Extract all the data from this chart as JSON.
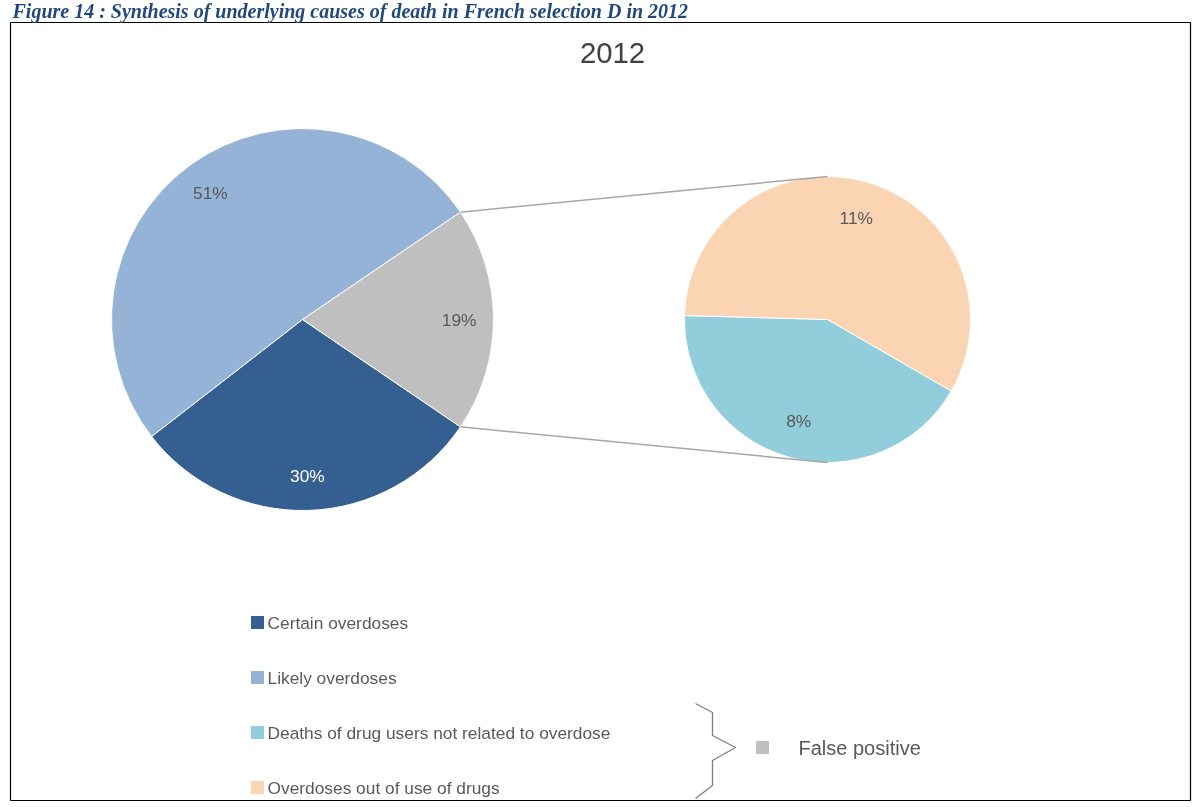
{
  "chart_data": [
    {
      "type": "pie",
      "title": "2012",
      "categories": [
        "Certain overdoses",
        "Likely overdoses",
        "False positive"
      ],
      "values": [
        30,
        51,
        19
      ],
      "colors": [
        "#365f91",
        "#95b3d7",
        "#bfbfbf"
      ],
      "value_labels": [
        "30%",
        "51%",
        "19%"
      ],
      "legend": "bottom",
      "annotations": [
        "Figure 14 : Synthesis of underlying causes of death in French selection D in 2012"
      ]
    },
    {
      "type": "pie",
      "categories": [
        "Deaths of drug users not related to overdose",
        "Overdoses out of  use of drugs"
      ],
      "values": [
        8,
        11
      ],
      "colors": [
        "#92cddc",
        "#fbd4b4"
      ],
      "value_labels": [
        "8%",
        "11%"
      ],
      "legend": "bottom"
    }
  ]
}
